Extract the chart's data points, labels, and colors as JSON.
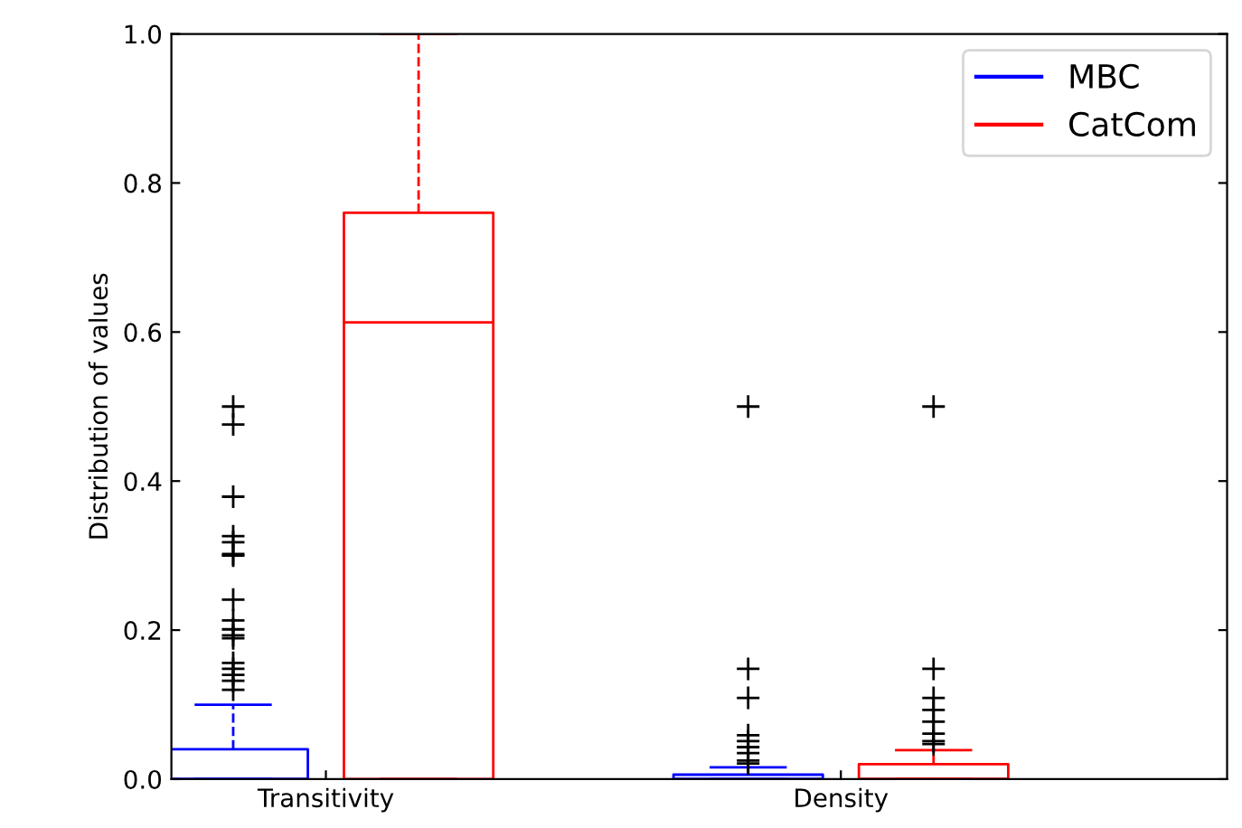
{
  "chart_data": {
    "type": "box",
    "ylabel": "Distribution of values",
    "categories": [
      "Transitivity",
      "Density"
    ],
    "series": [
      {
        "name": "MBC",
        "color": "#0000ff",
        "boxes": [
          {
            "low": 0,
            "q1": 0,
            "median": 0,
            "q3": 0.04,
            "high": 0.1,
            "outliers": [
              0.5,
              0.476,
              0.379,
              0.326,
              0.318,
              0.302,
              0.3,
              0.241,
              0.213,
              0.201,
              0.193,
              0.189,
              0.156,
              0.148,
              0.14,
              0.132,
              0.12
            ]
          },
          {
            "low": 0,
            "q1": 0,
            "median": 0,
            "q3": 0.006,
            "high": 0.016,
            "outliers": [
              0.5,
              0.148,
              0.109,
              0.059,
              0.051,
              0.043,
              0.035,
              0.025,
              0.021
            ]
          }
        ]
      },
      {
        "name": "CatCom",
        "color": "#ff0000",
        "boxes": [
          {
            "low": 0,
            "q1": 0,
            "median": 0.613,
            "q3": 0.76,
            "high": 1.0
          },
          {
            "low": 0,
            "q1": 0,
            "median": 0,
            "q3": 0.02,
            "high": 0.039,
            "outliers": [
              0.5,
              0.148,
              0.109,
              0.093,
              0.077,
              0.061,
              0.051,
              0.047
            ]
          }
        ]
      }
    ],
    "ylim": [
      0,
      1.0
    ],
    "yticks": [
      {
        "value": 0,
        "label": "0.0"
      },
      0.2,
      0.4,
      0.6,
      0.8,
      {
        "value": 1.0,
        "label": "1.0"
      }
    ],
    "legend": "top right",
    "grid": false,
    "marker": "cross",
    "line_style": "dashed"
  }
}
